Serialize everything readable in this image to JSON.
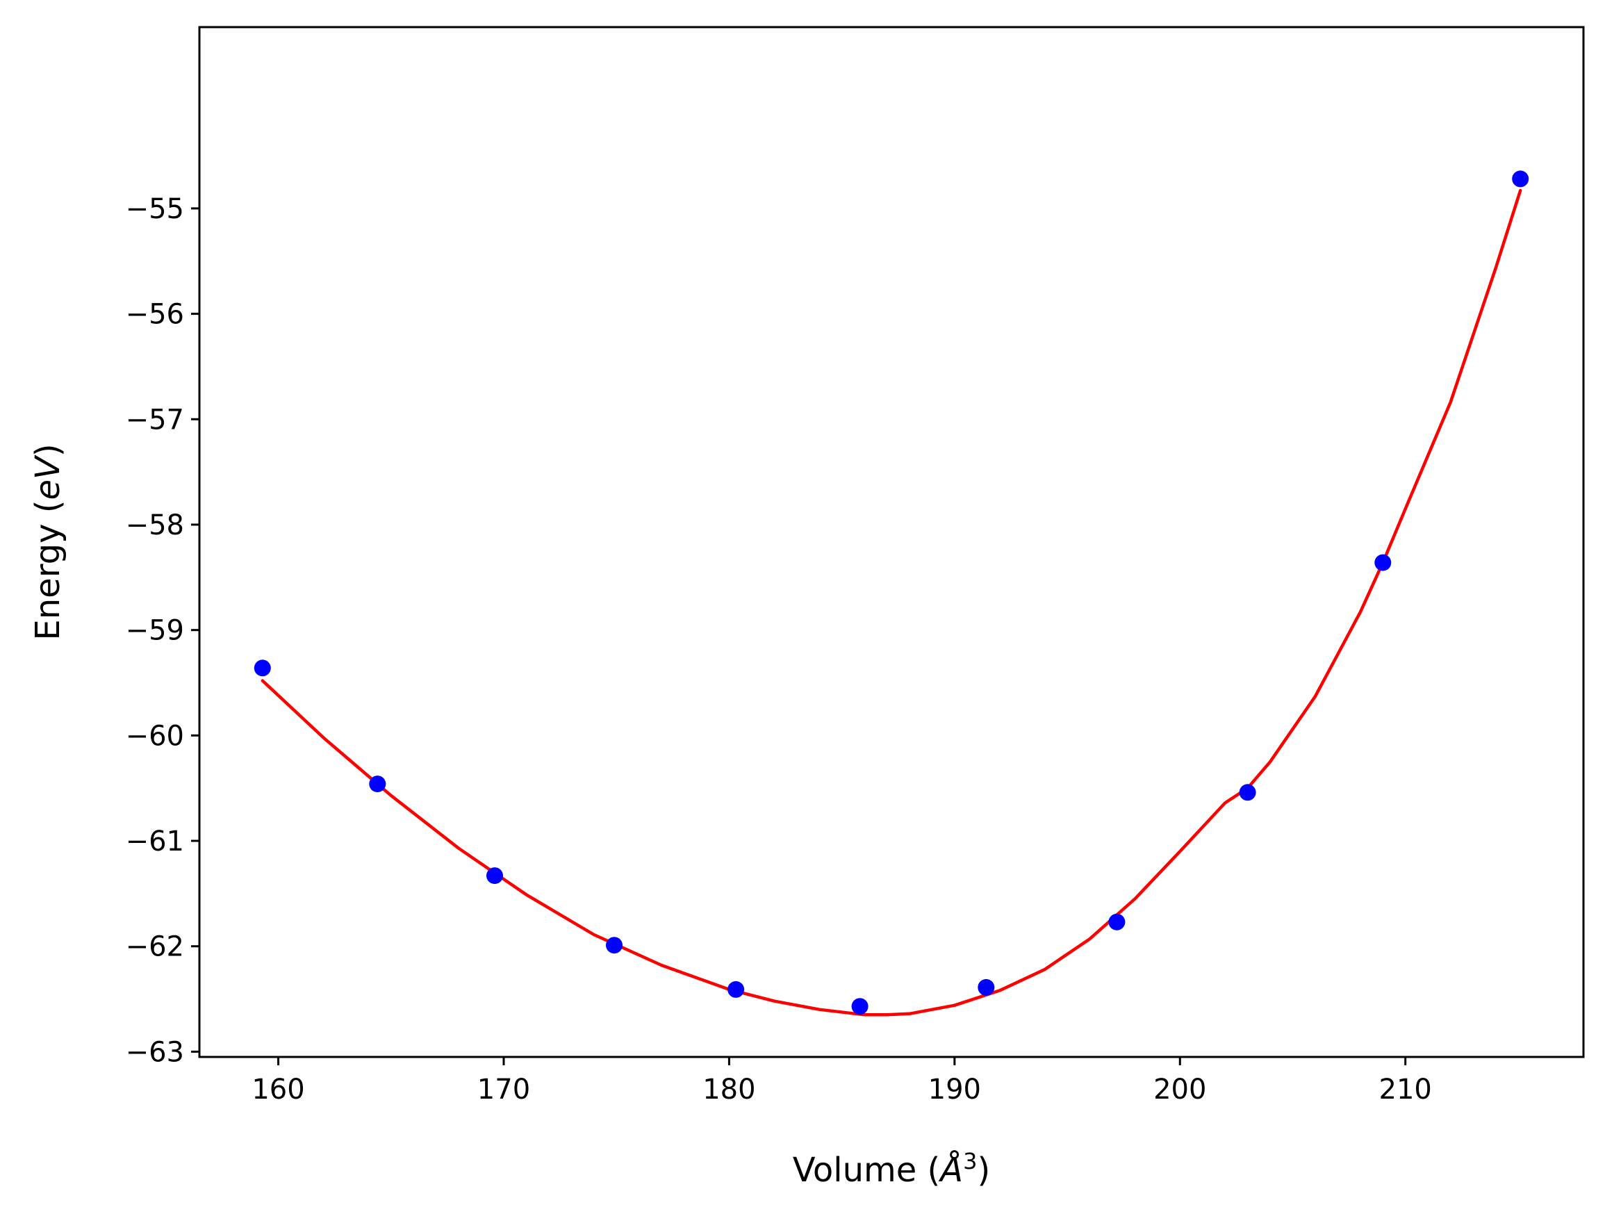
{
  "chart_data": {
    "type": "scatter",
    "title": "",
    "xlabel": "Volume (",
    "xlabel_unit": "Å",
    "xlabel_exp": "3",
    "xlabel_close": ")",
    "ylabel": "Energy (",
    "ylabel_unit": "eV",
    "ylabel_close": ")",
    "xlim": [
      156.5,
      217.9
    ],
    "ylim": [
      -63.05,
      -53.28
    ],
    "xticks": [
      160,
      170,
      180,
      190,
      200,
      210
    ],
    "xtick_labels": [
      "160",
      "170",
      "180",
      "190",
      "200",
      "210"
    ],
    "yticks": [
      -63,
      -62,
      -61,
      -60,
      -59,
      -58,
      -57,
      -56,
      -55
    ],
    "ytick_labels": [
      "−63",
      "−62",
      "−61",
      "−60",
      "−59",
      "−58",
      "−57",
      "−56",
      "−55"
    ],
    "grid": false,
    "colors": {
      "points": "#0000ff",
      "fit": "#ff0000"
    },
    "series": [
      {
        "kind": "points",
        "x": [
          159.3,
          164.4,
          169.6,
          174.9,
          180.3,
          185.8,
          191.4,
          197.2,
          203.0,
          209.0,
          215.1
        ],
        "y": [
          -59.36,
          -60.46,
          -61.33,
          -61.99,
          -62.41,
          -62.57,
          -62.39,
          -61.77,
          -60.54,
          -58.36,
          -54.72
        ]
      },
      {
        "kind": "line",
        "x": [
          159.3,
          162.0,
          165.0,
          168.0,
          171.0,
          174.0,
          177.0,
          180.0,
          182.0,
          184.0,
          186.0,
          187.0,
          188.0,
          190.0,
          192.0,
          194.0,
          196.0,
          198.0,
          200.0,
          202.0,
          203.0,
          204.0,
          206.0,
          208.0,
          209.0,
          210.0,
          212.0,
          214.0,
          215.1
        ],
        "y": [
          -59.48,
          -60.02,
          -60.57,
          -61.07,
          -61.51,
          -61.89,
          -62.18,
          -62.41,
          -62.52,
          -62.6,
          -62.65,
          -62.65,
          -62.64,
          -62.56,
          -62.42,
          -62.22,
          -61.93,
          -61.55,
          -61.1,
          -60.64,
          -60.5,
          -60.25,
          -59.63,
          -58.83,
          -58.36,
          -57.85,
          -56.84,
          -55.57,
          -54.83
        ]
      }
    ]
  }
}
